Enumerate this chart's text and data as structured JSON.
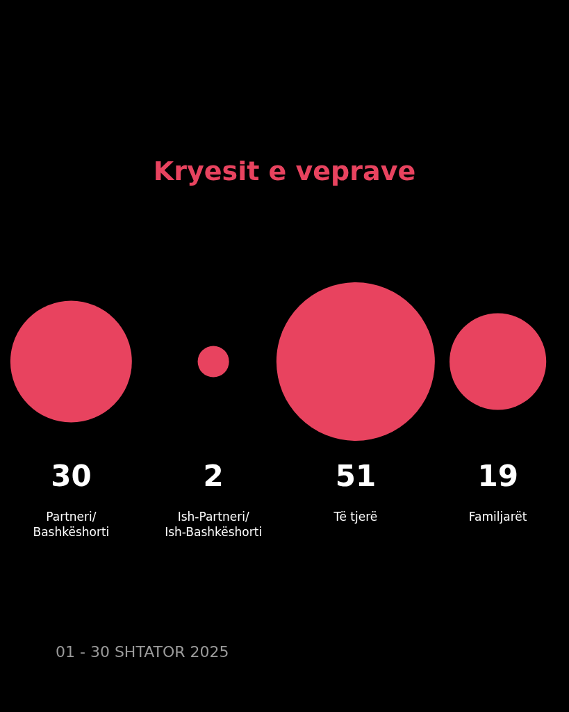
{
  "chart_data": {
    "type": "other",
    "title": "Kryesit e veprave",
    "categories": [
      "Partneri/Bashkëshorti",
      "Ish-Partneri/Ish-Bashkëshorti",
      "Të tjerë",
      "Familjarët"
    ],
    "values": [
      30,
      2,
      51,
      19
    ],
    "color": "#e8435f",
    "data_labels": true,
    "annotations": [
      "01 - 30 SHTATOR 2025"
    ]
  }
}
